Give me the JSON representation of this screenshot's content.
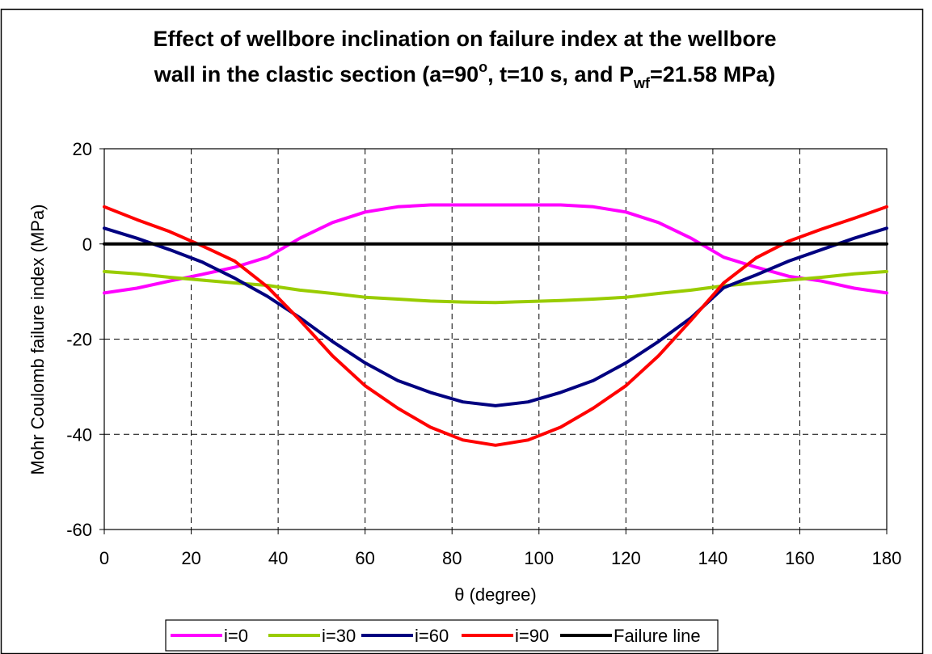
{
  "title": {
    "line1": "Effect of wellbore inclination on failure index at the wellbore",
    "line2_prefix": "wall in the clastic section (a=90",
    "line2_deg": "o",
    "line2_mid": ", t=10 s, and P",
    "line2_sub": "wf",
    "line2_suffix": "=21.58 MPa)"
  },
  "chart_data": {
    "type": "line",
    "xlabel": "θ (degree)",
    "ylabel": "Mohr Coulomb failure index (MPa)",
    "xlim": [
      0,
      180
    ],
    "ylim": [
      -60,
      20
    ],
    "xticks": [
      0,
      20,
      40,
      60,
      80,
      100,
      120,
      140,
      160,
      180
    ],
    "yticks": [
      20,
      0,
      -20,
      -40,
      -60
    ],
    "grid": {
      "x": "dashed",
      "y": "dashed"
    },
    "legend_position": "bottom",
    "x": [
      0,
      7.5,
      15,
      22.5,
      30,
      37.5,
      45,
      52.5,
      60,
      67.5,
      75,
      82.5,
      90,
      97.5,
      105,
      112.5,
      120,
      127.5,
      135,
      142.5,
      150,
      157.5,
      165,
      172.5,
      180
    ],
    "series": [
      {
        "name": "i=0",
        "color": "#ff00ff",
        "values": [
          -10.3,
          -9.3,
          -7.8,
          -6.4,
          -4.9,
          -2.8,
          1.2,
          4.5,
          6.7,
          7.8,
          8.2,
          8.2,
          8.2,
          8.2,
          8.2,
          7.8,
          6.7,
          4.5,
          1.2,
          -2.8,
          -4.9,
          -6.8,
          -7.8,
          -9.3,
          -10.3
        ]
      },
      {
        "name": "i=30",
        "color": "#99cc00",
        "values": [
          -5.8,
          -6.3,
          -7.0,
          -7.6,
          -8.2,
          -8.7,
          -9.7,
          -10.4,
          -11.2,
          -11.6,
          -12.0,
          -12.2,
          -12.3,
          -12.1,
          -11.9,
          -11.6,
          -11.2,
          -10.4,
          -9.7,
          -8.8,
          -8.2,
          -7.6,
          -7.0,
          -6.3,
          -5.8
        ]
      },
      {
        "name": "i=60",
        "color": "#000080",
        "values": [
          3.3,
          1.2,
          -1.2,
          -3.8,
          -7.2,
          -11.0,
          -15.5,
          -20.5,
          -25.0,
          -28.7,
          -31.2,
          -33.2,
          -34.0,
          -33.2,
          -31.2,
          -28.7,
          -25.0,
          -20.5,
          -15.5,
          -9.2,
          -6.5,
          -3.6,
          -1.2,
          1.2,
          3.3
        ]
      },
      {
        "name": "i=90",
        "color": "#ff0000",
        "values": [
          7.8,
          5.1,
          2.6,
          -0.4,
          -3.6,
          -9.0,
          -16.0,
          -23.5,
          -29.8,
          -34.5,
          -38.5,
          -41.2,
          -42.3,
          -41.2,
          -38.5,
          -34.5,
          -29.8,
          -23.5,
          -16.0,
          -8.2,
          -2.9,
          0.6,
          3.1,
          5.4,
          7.8
        ]
      },
      {
        "name": "Failure line",
        "color": "#000000",
        "values": [
          0,
          0,
          0,
          0,
          0,
          0,
          0,
          0,
          0,
          0,
          0,
          0,
          0,
          0,
          0,
          0,
          0,
          0,
          0,
          0,
          0,
          0,
          0,
          0,
          0
        ]
      }
    ]
  }
}
